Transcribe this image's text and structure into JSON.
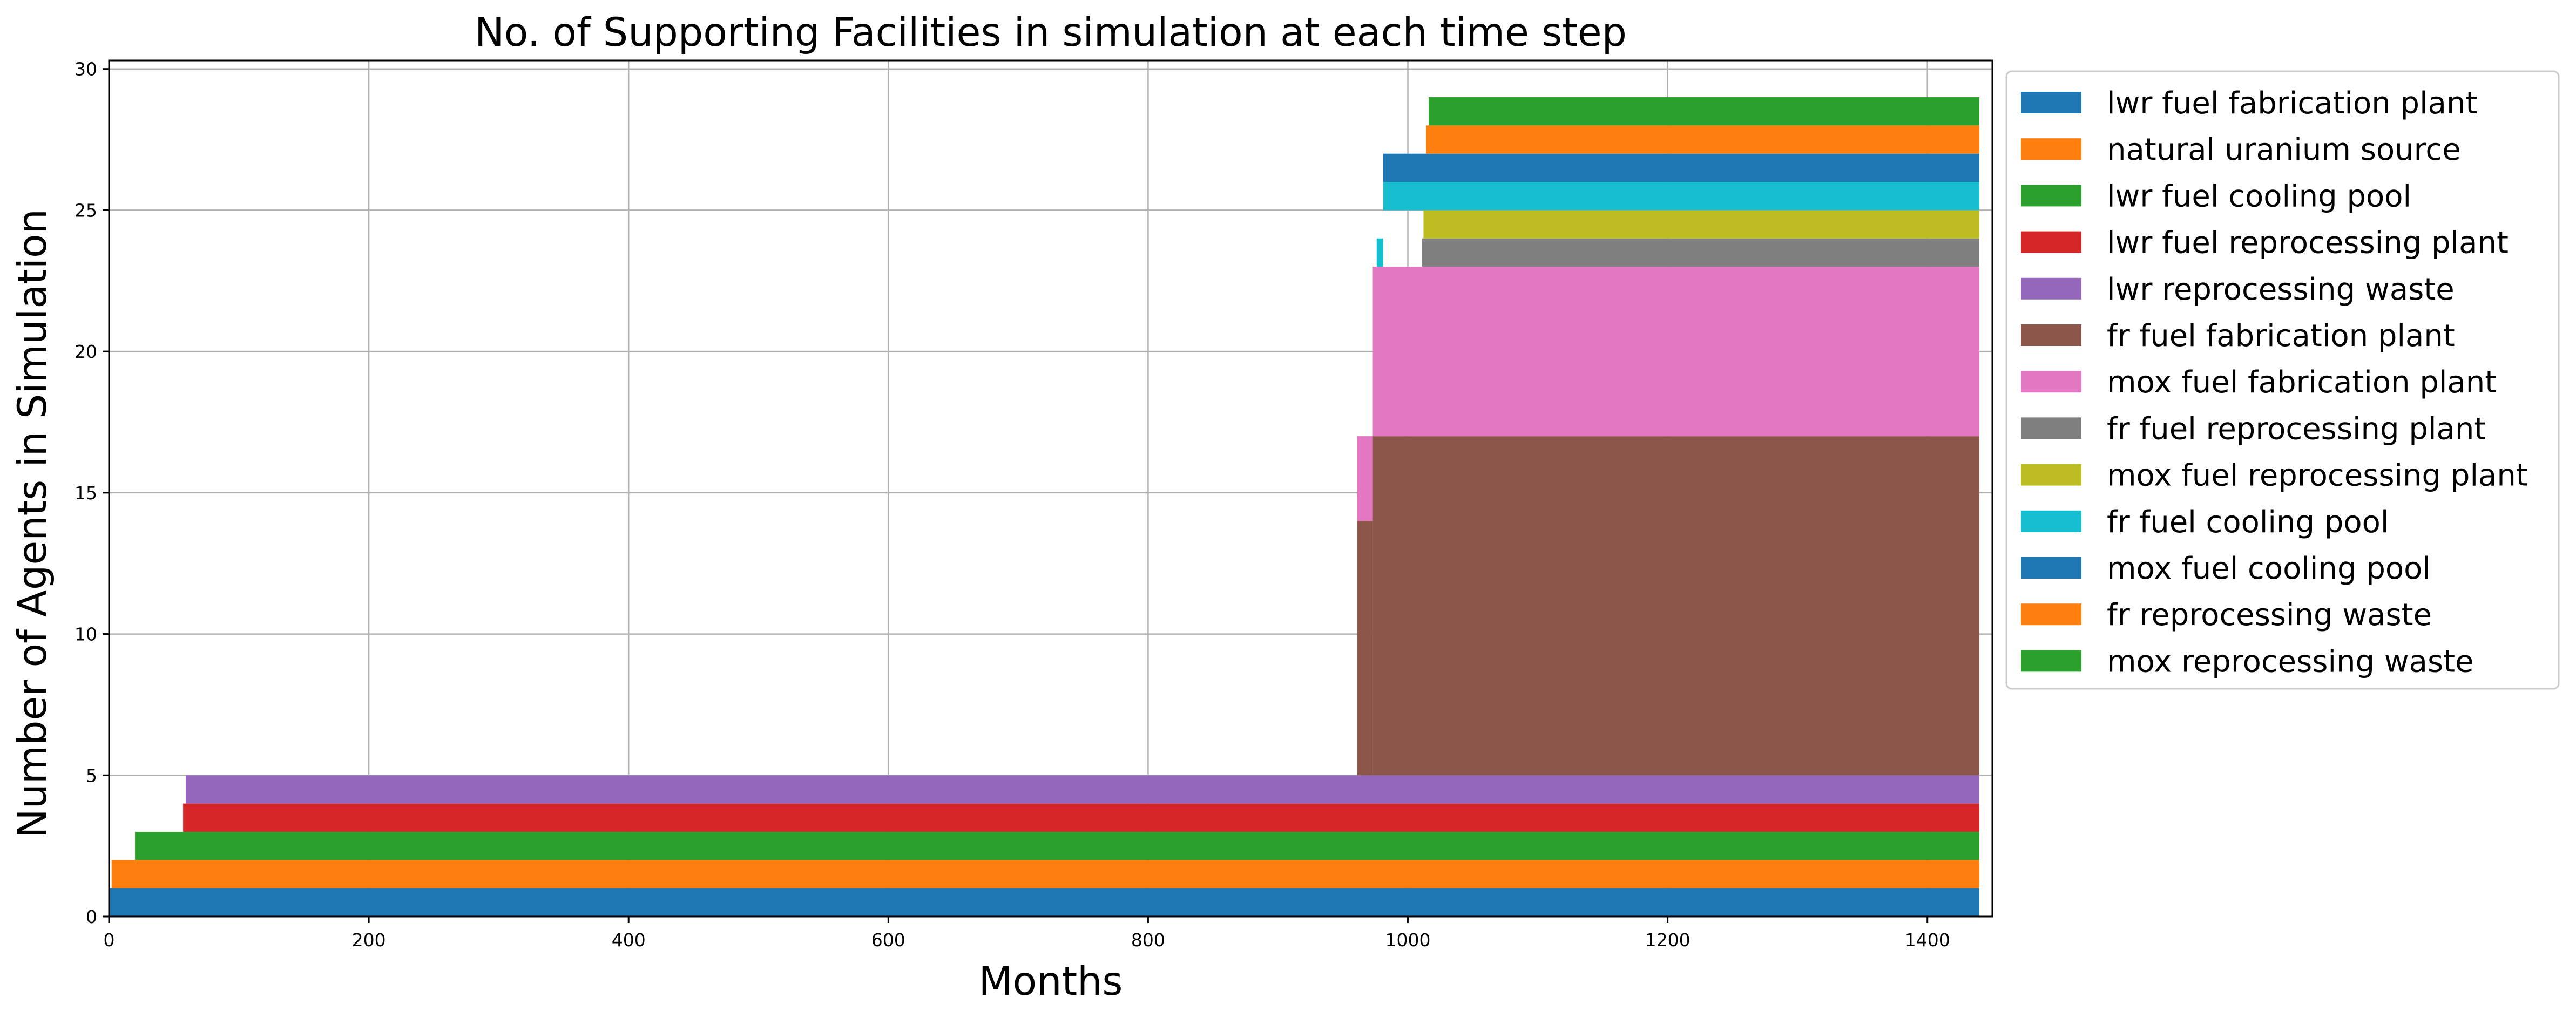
{
  "chart_data": {
    "type": "area",
    "stacked": true,
    "title": "No. of Supporting Facilities in simulation at each time step",
    "xlabel": "Months",
    "ylabel": "Number of Agents in Simulation",
    "xlim": [
      0,
      1450
    ],
    "ylim": [
      0,
      30.3
    ],
    "xticks": [
      0,
      200,
      400,
      600,
      800,
      1000,
      1200,
      1400
    ],
    "yticks": [
      0,
      5,
      10,
      15,
      20,
      25,
      30
    ],
    "grid": true,
    "legend_position": "outside-right",
    "series": [
      {
        "name": "lwr fuel fabrication plant",
        "color": "#1f77b4",
        "start": 0,
        "end": 1440,
        "count": 1
      },
      {
        "name": "natural uranium source",
        "color": "#ff7f0e",
        "start": 2,
        "end": 1440,
        "count": 1
      },
      {
        "name": "lwr fuel cooling pool",
        "color": "#2ca02c",
        "start": 20,
        "end": 1440,
        "count": 1
      },
      {
        "name": "lwr fuel reprocessing plant",
        "color": "#d62728",
        "start": 57,
        "end": 1440,
        "count": 1
      },
      {
        "name": "lwr reprocessing waste",
        "color": "#9467bd",
        "start": 59,
        "end": 1440,
        "count": 1
      },
      {
        "name": "fr fuel fabrication plant",
        "color": "#8c564b",
        "segments": [
          {
            "start": 961,
            "end": 973,
            "count": 9
          },
          {
            "start": 973,
            "end": 1440,
            "count": 12
          }
        ]
      },
      {
        "name": "mox fuel fabrication plant",
        "color": "#e377c2",
        "segments": [
          {
            "start": 961,
            "end": 973,
            "count": 3
          },
          {
            "start": 973,
            "end": 1440,
            "count": 6
          }
        ]
      },
      {
        "name": "fr fuel reprocessing plant",
        "color": "#7f7f7f",
        "start": 1011,
        "end": 1440,
        "count": 1
      },
      {
        "name": "mox fuel reprocessing plant",
        "color": "#bcbd22",
        "start": 1012,
        "end": 1440,
        "count": 1
      },
      {
        "name": "fr fuel cooling pool",
        "color": "#17becf",
        "segments": [
          {
            "start": 976,
            "end": 981,
            "count": 1
          },
          {
            "start": 981,
            "end": 1440,
            "count": 1
          }
        ]
      },
      {
        "name": "mox fuel cooling pool",
        "color": "#1f77b4",
        "start": 981,
        "end": 1440,
        "count": 1
      },
      {
        "name": "fr reprocessing waste",
        "color": "#ff7f0e",
        "start": 1014,
        "end": 1440,
        "count": 1
      },
      {
        "name": "mox reprocessing waste",
        "color": "#2ca02c",
        "start": 1016,
        "end": 1440,
        "count": 1
      }
    ]
  }
}
